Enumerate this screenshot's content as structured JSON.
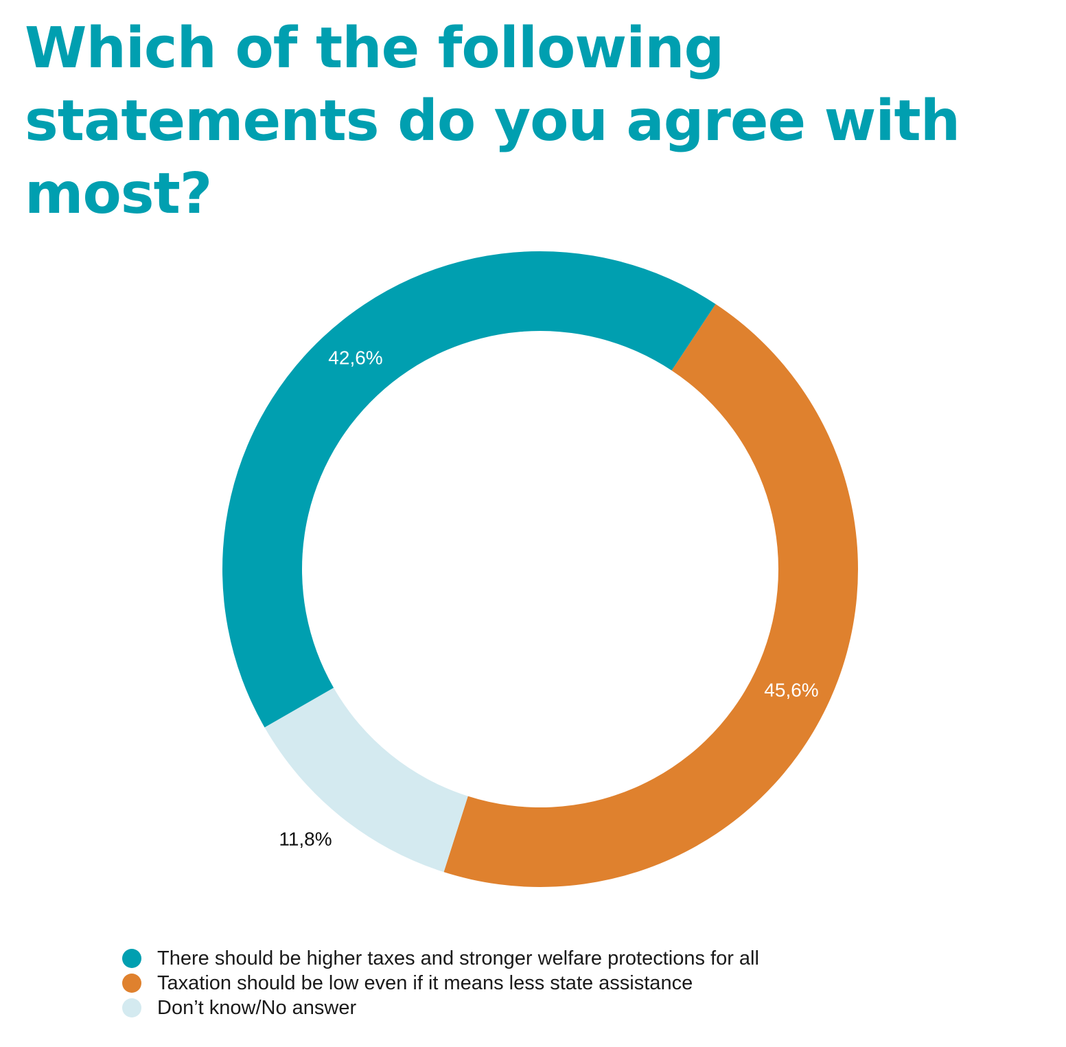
{
  "colors": {
    "title": "#009fb0",
    "teal": "#009fb0",
    "orange": "#df812e",
    "light_blue": "#d4eaf0"
  },
  "chart_data": {
    "type": "pie",
    "variant": "donut",
    "title": "Which of the following statements do you agree with most?",
    "start_angle_deg": 33.5,
    "direction": "clockwise",
    "slices": [
      {
        "name": "Taxation should be low even if it means less state assistance",
        "value": 45.6,
        "label": "45,6%",
        "color": "#df812e",
        "label_color": "#ffffff"
      },
      {
        "name": "Don’t know/No answer",
        "value": 11.8,
        "label": "11,8%",
        "color": "#d4eaf0",
        "label_color": "#111111"
      },
      {
        "name": "There should be higher taxes and stronger welfare protections for all",
        "value": 42.6,
        "label": "42,6%",
        "color": "#009fb0",
        "label_color": "#ffffff"
      }
    ],
    "legend": {
      "placement": "bottom-left",
      "entries": [
        {
          "label": "There should be higher taxes and stronger welfare protections for all",
          "color": "#009fb0"
        },
        {
          "label": "Taxation should be low even if it means less state assistance",
          "color": "#df812e"
        },
        {
          "label": "Don’t know/No answer",
          "color": "#d4eaf0"
        }
      ]
    }
  }
}
